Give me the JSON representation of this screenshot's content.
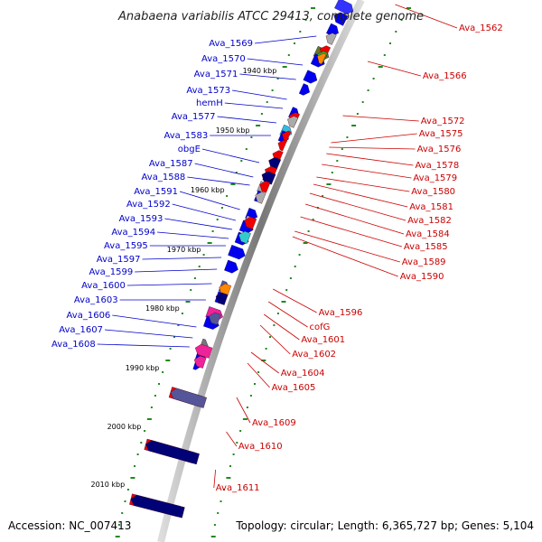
{
  "title": "Anabaena variabilis ATCC 29413, complete genome",
  "accession": "Accession: NC_007413",
  "topology": "Topology: circular; Length: 6,365,727 bp; Genes: 5,104",
  "colors": {
    "forward": "#0000ee",
    "reverse": "#ee0000",
    "left_label": "#0000cc",
    "right_label": "#cc0000",
    "tick": "#228822",
    "backbone": "#999999"
  },
  "scale_labels": [
    "1940 kbp",
    "1950 kbp",
    "1960 kbp",
    "1970 kbp",
    "1980 kbp",
    "1990 kbp",
    "2000 kbp",
    "2010 kbp"
  ],
  "left_labels": [
    "Ava_1569",
    "Ava_1570",
    "Ava_1571",
    "Ava_1573",
    "hemH",
    "Ava_1577",
    "Ava_1583",
    "obgE",
    "Ava_1587",
    "Ava_1588",
    "Ava_1591",
    "Ava_1592",
    "Ava_1593",
    "Ava_1594",
    "Ava_1595",
    "Ava_1597",
    "Ava_1599",
    "Ava_1600",
    "Ava_1603",
    "Ava_1606",
    "Ava_1607",
    "Ava_1608"
  ],
  "right_labels": [
    "Ava_1562",
    "Ava_1566",
    "Ava_1572",
    "Ava_1575",
    "Ava_1576",
    "Ava_1578",
    "Ava_1579",
    "Ava_1580",
    "Ava_1581",
    "Ava_1582",
    "Ava_1584",
    "Ava_1585",
    "Ava_1589",
    "Ava_1590",
    "Ava_1596",
    "cofG",
    "Ava_1601",
    "Ava_1602",
    "Ava_1604",
    "Ava_1605",
    "Ava_1609",
    "Ava_1610",
    "Ava_1611"
  ]
}
